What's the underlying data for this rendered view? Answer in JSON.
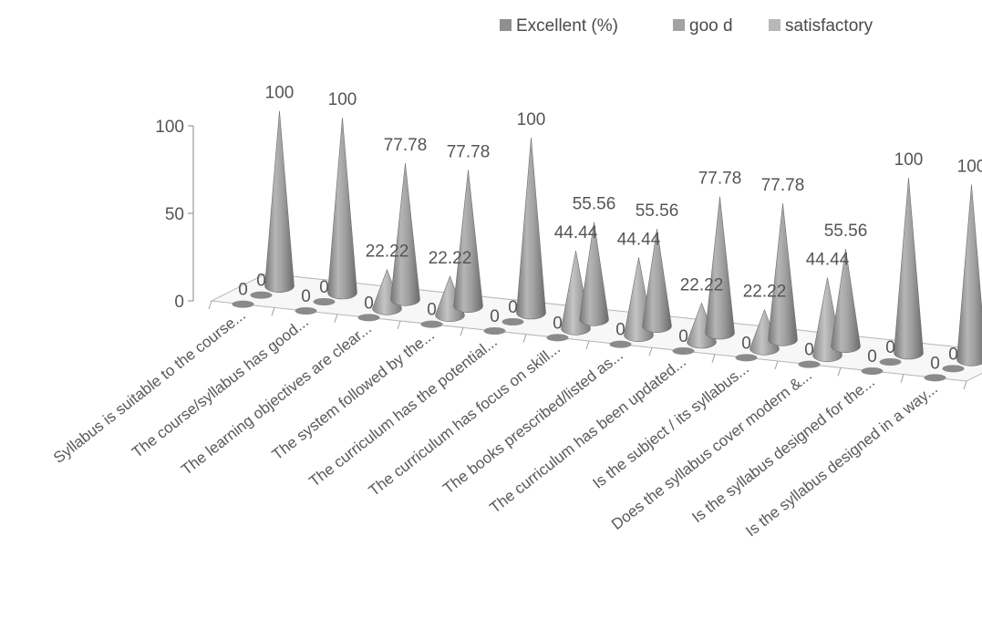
{
  "chart_data": {
    "type": "bar",
    "subtype": "3d-cone",
    "title": "",
    "xlabel": "",
    "ylabel": "",
    "ylim": [
      0,
      100
    ],
    "yticks": [
      0,
      50,
      100
    ],
    "legend_position": "top-right",
    "grid": false,
    "categories": [
      "Syllabus is suitable to the course...",
      "The course/syllabus has good...",
      "The learning objectives are clear...",
      "The system followed by the...",
      "The curriculum has the potential...",
      "The curriculum has focus on skill...",
      "The books prescribed/listed as...",
      "The curriculum has been updated...",
      "Is the subject / its syllabus...",
      "Does the syllabus cover modern &...",
      "Is the syllabus designed for the...",
      "Is the syllabus designed in a way..."
    ],
    "series": [
      {
        "name": "Excellent (%)",
        "color": "#8f8f8f",
        "values": [
          100,
          100,
          77.78,
          77.78,
          100,
          55.56,
          55.56,
          77.78,
          77.78,
          55.56,
          100,
          100
        ]
      },
      {
        "name": "goo d",
        "color": "#a3a3a3",
        "values": [
          0,
          0,
          22.22,
          22.22,
          0,
          44.44,
          44.44,
          22.22,
          22.22,
          44.44,
          0,
          0
        ]
      },
      {
        "name": "satisfactory",
        "color": "#b8b8b8",
        "values": [
          0,
          0,
          0,
          0,
          0,
          0,
          0,
          0,
          0,
          0,
          0,
          0
        ]
      }
    ]
  }
}
